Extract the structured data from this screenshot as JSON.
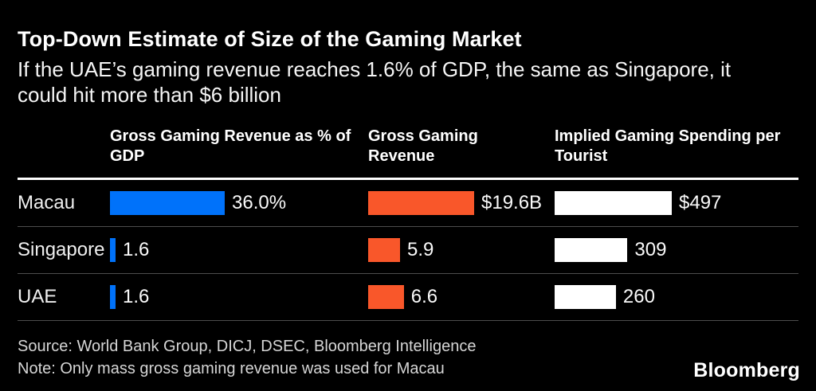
{
  "title": "Top-Down Estimate of Size of the Gaming Market",
  "subtitle": "If the UAE’s gaming revenue reaches 1.6% of GDP, the same as Singapore, it could hit more than $6 billion",
  "footer": {
    "source": "Source: World Bank Group, DICJ, DSEC, Bloomberg Intelligence",
    "note": "Note: Only mass gross gaming revenue was used for Macau"
  },
  "logo": "Bloomberg",
  "colors": {
    "background": "#000000",
    "blue_bar": "#0072FA",
    "orange_bar": "#F9572A",
    "white_bar": "#FFFFFF",
    "separator": "#4D4D4D"
  },
  "chart_data": {
    "type": "bar",
    "orientation": "horizontal",
    "grid": false,
    "legend": false,
    "categories": [
      "Macau",
      "Singapore",
      "UAE"
    ],
    "columns": [
      {
        "header": "Gross Gaming Revenue as % of GDP",
        "unit": "% of GDP",
        "color": "#0072FA",
        "xmax": 36.0,
        "values": [
          36.0,
          1.6,
          1.6
        ],
        "labels": [
          "36.0%",
          "1.6",
          "1.6"
        ]
      },
      {
        "header": "Gross Gaming Revenue",
        "unit": "billion USD",
        "color": "#F9572A",
        "xmax": 19.6,
        "values": [
          19.6,
          5.9,
          6.6
        ],
        "labels": [
          "$19.6B",
          "5.9",
          "6.6"
        ]
      },
      {
        "header": "Implied Gaming Spending per Tourist",
        "unit": "USD",
        "color": "#FFFFFF",
        "xmax": 497,
        "values": [
          497,
          309,
          260
        ],
        "labels": [
          "$497",
          "309",
          "260"
        ]
      }
    ]
  }
}
